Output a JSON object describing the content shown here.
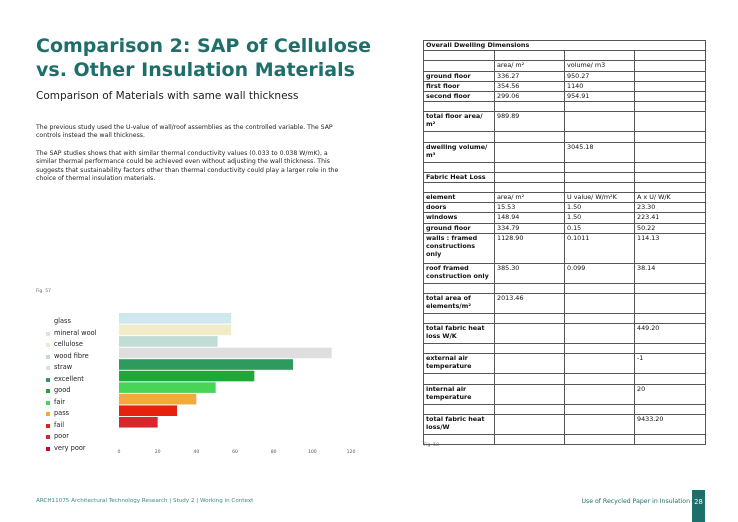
{
  "left": {
    "title": "Comparison 2: SAP of Cellulose vs. Other Insulation Materials",
    "subtitle": "Comparison of Materials with same wall thickness",
    "paragraphs": [
      "The previous study used the U-value of wall/roof assemblies as the controlled variable. The SAP controls instead the wall thickness.",
      "The SAP studies shows that with similar thermal conductivity values (0.033 to 0.038 W/mK), a similar thermal performance could be achieved even without adjusting the wall thickness. This suggests that sustainability factors other than thermal conductivity could play a larger role in the choice of thermal insulation materials."
    ],
    "fig_label": "Fig. 57"
  },
  "chart_data": {
    "type": "bar",
    "orientation": "horizontal",
    "categories": [
      "mineral wool",
      "cellulose",
      "wood fibre",
      "straw",
      "excellent",
      "good",
      "fair",
      "pass",
      "fail",
      "poor",
      "very poor"
    ],
    "values": [
      58,
      58,
      51,
      110,
      90,
      70,
      50,
      40,
      30,
      20,
      null
    ],
    "colors": [
      "#cfe8ef",
      "#f2ebc8",
      "#c1dcd4",
      "#dedede",
      "#2e9a5e",
      "#1fa838",
      "#4ad457",
      "#f4a93c",
      "#e8200e",
      "#d8272c",
      "#c40d1e"
    ],
    "legend": {
      "heading": "glass",
      "items": [
        {
          "label": "mineral wool",
          "color": "#cfe8ef"
        },
        {
          "label": "cellulose",
          "color": "#f2ebc8"
        },
        {
          "label": "wood fibre",
          "color": "#c1dcd4"
        },
        {
          "label": "straw",
          "color": "#dedede"
        },
        {
          "label": "excellent",
          "color": "#2e9a5e"
        },
        {
          "label": "good",
          "color": "#1fa838"
        },
        {
          "label": "fair",
          "color": "#4ad457"
        },
        {
          "label": "pass",
          "color": "#f4a93c"
        },
        {
          "label": "fail",
          "color": "#e8200e"
        },
        {
          "label": "poor",
          "color": "#d8272c"
        },
        {
          "label": "very poor",
          "color": "#c40d1e"
        }
      ]
    },
    "xlim": [
      0,
      120
    ],
    "xticks": [
      "0",
      "20",
      "40",
      "60",
      "80",
      "100",
      "120"
    ]
  },
  "table": {
    "rows": [
      {
        "cells": [
          "Overall Dwelling Dimensions"
        ],
        "span": 4,
        "bold": [
          0
        ]
      },
      {
        "cells": [
          "",
          "",
          "",
          ""
        ]
      },
      {
        "cells": [
          "",
          "area/ m²",
          "volume/ m3",
          ""
        ]
      },
      {
        "cells": [
          "ground floor",
          "336.27",
          "950.27",
          ""
        ],
        "bold": [
          0
        ]
      },
      {
        "cells": [
          "first floor",
          "354.56",
          "1140",
          ""
        ],
        "bold": [
          0
        ]
      },
      {
        "cells": [
          "second floor",
          "299.06",
          "954.91",
          ""
        ],
        "bold": [
          0
        ]
      },
      {
        "cells": [
          "",
          "",
          "",
          ""
        ]
      },
      {
        "cells": [
          "total floor area/ m²",
          "989.89",
          "",
          ""
        ],
        "bold": [
          0
        ]
      },
      {
        "cells": [
          "",
          "",
          "",
          ""
        ]
      },
      {
        "cells": [
          "dwelling volume/ m³",
          "",
          "3045.18",
          ""
        ],
        "bold": [
          0
        ]
      },
      {
        "cells": [
          "",
          "",
          "",
          ""
        ]
      },
      {
        "cells": [
          "Fabric Heat Loss",
          "",
          "",
          ""
        ],
        "bold": [
          0
        ]
      },
      {
        "cells": [
          "",
          "",
          "",
          ""
        ]
      },
      {
        "cells": [
          "element",
          "area/ m²",
          "U value/ W/m²K",
          "A x U/ W/K"
        ],
        "bold": [
          0
        ]
      },
      {
        "cells": [
          "doors",
          "15.53",
          "1.50",
          "23.30"
        ],
        "bold": [
          0
        ]
      },
      {
        "cells": [
          "windows",
          "148.94",
          "1.50",
          "223.41"
        ],
        "bold": [
          0
        ]
      },
      {
        "cells": [
          "ground floor",
          "334.79",
          "0.15",
          "50.22"
        ],
        "bold": [
          0
        ]
      },
      {
        "cells": [
          "walls : framed constructions only",
          "1128.90",
          "0.1011",
          "114.13"
        ],
        "bold": [
          0
        ]
      },
      {
        "cells": [
          "roof framed construction only",
          "385.30",
          "0.099",
          "38.14"
        ],
        "bold": [
          0
        ]
      },
      {
        "cells": [
          "",
          "",
          "",
          ""
        ]
      },
      {
        "cells": [
          "total area of elements/m²",
          "2013.46",
          "",
          ""
        ],
        "bold": [
          0
        ]
      },
      {
        "cells": [
          "",
          "",
          "",
          ""
        ]
      },
      {
        "cells": [
          "total fabric heat loss W/K",
          "",
          "",
          "449.20"
        ],
        "bold": [
          0
        ]
      },
      {
        "cells": [
          "",
          "",
          "",
          ""
        ]
      },
      {
        "cells": [
          "external air temperature",
          "",
          "",
          "-1"
        ],
        "bold": [
          0
        ]
      },
      {
        "cells": [
          "",
          "",
          "",
          ""
        ]
      },
      {
        "cells": [
          "internal air temperature",
          "",
          "",
          "20"
        ],
        "bold": [
          0
        ]
      },
      {
        "cells": [
          "",
          "",
          "",
          ""
        ]
      },
      {
        "cells": [
          "total fabric heat loss/W",
          "",
          "",
          "9433.20"
        ],
        "bold": [
          0
        ]
      },
      {
        "cells": [
          "",
          "",
          "",
          ""
        ]
      }
    ],
    "fig_label": "Fig. 58"
  },
  "footer": {
    "left": "ARCH11075 Architectural Technology Research | Study 2 | Working in Context",
    "right": "Use of Recycled Paper in Insulation",
    "page": "28"
  }
}
